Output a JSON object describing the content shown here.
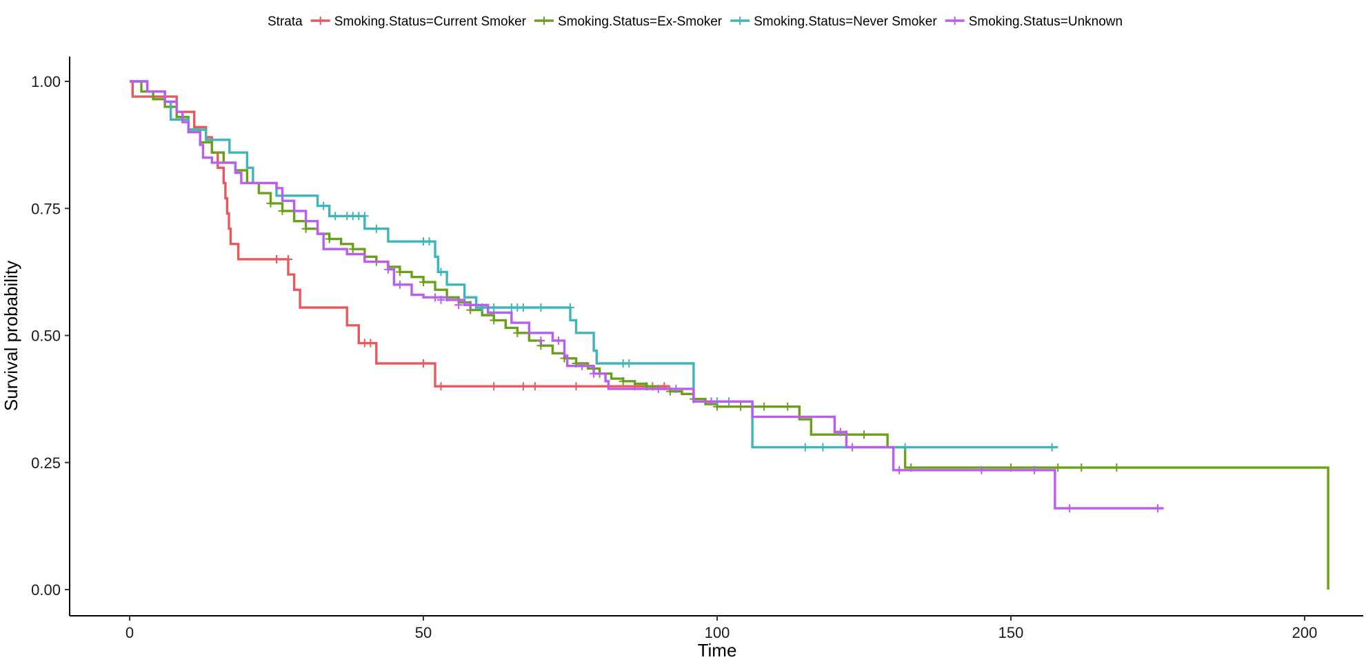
{
  "chart_data": {
    "type": "line",
    "subtype": "kaplan-meier-step",
    "title": "",
    "xlabel": "Time",
    "ylabel": "Survival probability",
    "xlim": [
      -10,
      210
    ],
    "ylim": [
      -0.045,
      1.05
    ],
    "xticks": [
      0,
      50,
      100,
      150,
      200
    ],
    "xtick_labels": [
      "0",
      "50",
      "100",
      "150",
      "200"
    ],
    "yticks": [
      0,
      0.25,
      0.5,
      0.75,
      1.0
    ],
    "ytick_labels": [
      "0.00",
      "0.25",
      "0.50",
      "0.75",
      "1.00"
    ],
    "grid": false,
    "legend": {
      "title": "Strata",
      "placement": "top"
    },
    "series": [
      {
        "name": "Smoking.Status=Current Smoker",
        "color": "#E8585C",
        "steps": [
          [
            0,
            1.0
          ],
          [
            0.5,
            0.97
          ],
          [
            4,
            0.97
          ],
          [
            8,
            0.94
          ],
          [
            11,
            0.91
          ],
          [
            13,
            0.89
          ],
          [
            14,
            0.86
          ],
          [
            15,
            0.83
          ],
          [
            16,
            0.8
          ],
          [
            16.3,
            0.77
          ],
          [
            16.6,
            0.74
          ],
          [
            16.9,
            0.71
          ],
          [
            17.2,
            0.68
          ],
          [
            18.5,
            0.65
          ],
          [
            27,
            0.62
          ],
          [
            28,
            0.59
          ],
          [
            29,
            0.555
          ],
          [
            37,
            0.52
          ],
          [
            39,
            0.485
          ],
          [
            42,
            0.445
          ],
          [
            52,
            0.4
          ],
          [
            92,
            0.4
          ]
        ],
        "censor": [
          [
            25,
            0.65
          ],
          [
            27,
            0.65
          ],
          [
            40,
            0.485
          ],
          [
            41,
            0.485
          ],
          [
            50,
            0.445
          ],
          [
            53,
            0.4
          ],
          [
            62,
            0.4
          ],
          [
            67,
            0.4
          ],
          [
            69,
            0.4
          ],
          [
            76,
            0.4
          ],
          [
            86,
            0.4
          ],
          [
            89,
            0.4
          ],
          [
            91,
            0.4
          ]
        ]
      },
      {
        "name": "Smoking.Status=Ex-Smoker",
        "color": "#6A9F19",
        "steps": [
          [
            0,
            1.0
          ],
          [
            2,
            0.98
          ],
          [
            4,
            0.965
          ],
          [
            6,
            0.95
          ],
          [
            8,
            0.93
          ],
          [
            10,
            0.905
          ],
          [
            12,
            0.88
          ],
          [
            14,
            0.86
          ],
          [
            16,
            0.84
          ],
          [
            18,
            0.825
          ],
          [
            20,
            0.8
          ],
          [
            22,
            0.78
          ],
          [
            24,
            0.76
          ],
          [
            26,
            0.745
          ],
          [
            28,
            0.725
          ],
          [
            30,
            0.71
          ],
          [
            32,
            0.7
          ],
          [
            34,
            0.69
          ],
          [
            36,
            0.68
          ],
          [
            38,
            0.67
          ],
          [
            40,
            0.655
          ],
          [
            42,
            0.645
          ],
          [
            44,
            0.635
          ],
          [
            46,
            0.625
          ],
          [
            48,
            0.615
          ],
          [
            50,
            0.605
          ],
          [
            52,
            0.59
          ],
          [
            54,
            0.575
          ],
          [
            56,
            0.565
          ],
          [
            58,
            0.55
          ],
          [
            60,
            0.54
          ],
          [
            62,
            0.53
          ],
          [
            64,
            0.515
          ],
          [
            66,
            0.505
          ],
          [
            68,
            0.49
          ],
          [
            70,
            0.48
          ],
          [
            72,
            0.465
          ],
          [
            74,
            0.455
          ],
          [
            76,
            0.445
          ],
          [
            78,
            0.435
          ],
          [
            80,
            0.425
          ],
          [
            82,
            0.415
          ],
          [
            84,
            0.41
          ],
          [
            86,
            0.405
          ],
          [
            88,
            0.4
          ],
          [
            90,
            0.395
          ],
          [
            92,
            0.39
          ],
          [
            94,
            0.385
          ],
          [
            96,
            0.375
          ],
          [
            98,
            0.365
          ],
          [
            100,
            0.36
          ],
          [
            114,
            0.335
          ],
          [
            116,
            0.305
          ],
          [
            129,
            0.28
          ],
          [
            132,
            0.24
          ],
          [
            204,
            0.24
          ],
          [
            204,
            0.0
          ]
        ],
        "censor": [
          [
            24,
            0.76
          ],
          [
            26,
            0.745
          ],
          [
            30,
            0.71
          ],
          [
            34,
            0.69
          ],
          [
            38,
            0.67
          ],
          [
            42,
            0.645
          ],
          [
            46,
            0.625
          ],
          [
            50,
            0.605
          ],
          [
            54,
            0.575
          ],
          [
            58,
            0.55
          ],
          [
            62,
            0.53
          ],
          [
            66,
            0.505
          ],
          [
            70,
            0.48
          ],
          [
            74,
            0.455
          ],
          [
            76,
            0.445
          ],
          [
            80,
            0.425
          ],
          [
            84,
            0.41
          ],
          [
            88,
            0.4
          ],
          [
            92,
            0.39
          ],
          [
            96,
            0.375
          ],
          [
            100,
            0.36
          ],
          [
            104,
            0.36
          ],
          [
            106,
            0.36
          ],
          [
            108,
            0.36
          ],
          [
            112,
            0.36
          ],
          [
            122,
            0.305
          ],
          [
            125,
            0.305
          ],
          [
            133,
            0.24
          ],
          [
            150,
            0.24
          ],
          [
            158,
            0.24
          ],
          [
            162,
            0.24
          ],
          [
            168,
            0.24
          ]
        ]
      },
      {
        "name": "Smoking.Status=Never Smoker",
        "color": "#3DB5BA",
        "steps": [
          [
            0,
            1.0
          ],
          [
            3,
            0.98
          ],
          [
            6,
            0.96
          ],
          [
            7,
            0.925
          ],
          [
            10,
            0.905
          ],
          [
            13,
            0.885
          ],
          [
            17,
            0.86
          ],
          [
            20,
            0.83
          ],
          [
            21,
            0.8
          ],
          [
            25,
            0.775
          ],
          [
            32,
            0.755
          ],
          [
            34,
            0.735
          ],
          [
            40,
            0.71
          ],
          [
            44,
            0.685
          ],
          [
            52,
            0.655
          ],
          [
            52.5,
            0.625
          ],
          [
            54,
            0.6
          ],
          [
            57,
            0.575
          ],
          [
            59,
            0.555
          ],
          [
            75,
            0.53
          ],
          [
            76,
            0.505
          ],
          [
            79,
            0.47
          ],
          [
            79.5,
            0.445
          ],
          [
            96,
            0.37
          ],
          [
            106,
            0.28
          ],
          [
            158,
            0.28
          ]
        ],
        "censor": [
          [
            33,
            0.755
          ],
          [
            35,
            0.735
          ],
          [
            37,
            0.735
          ],
          [
            38,
            0.735
          ],
          [
            39,
            0.735
          ],
          [
            40,
            0.735
          ],
          [
            42,
            0.71
          ],
          [
            50,
            0.685
          ],
          [
            51,
            0.685
          ],
          [
            53,
            0.625
          ],
          [
            60,
            0.555
          ],
          [
            62,
            0.555
          ],
          [
            65,
            0.555
          ],
          [
            66,
            0.555
          ],
          [
            67,
            0.555
          ],
          [
            70,
            0.555
          ],
          [
            75,
            0.555
          ],
          [
            84,
            0.445
          ],
          [
            85,
            0.445
          ],
          [
            100,
            0.37
          ],
          [
            102,
            0.37
          ],
          [
            115,
            0.28
          ],
          [
            118,
            0.28
          ],
          [
            132,
            0.28
          ],
          [
            157,
            0.28
          ]
        ]
      },
      {
        "name": "Smoking.Status=Unknown",
        "color": "#BB5CF0",
        "steps": [
          [
            0,
            1.0
          ],
          [
            3,
            0.98
          ],
          [
            6,
            0.96
          ],
          [
            8,
            0.94
          ],
          [
            9,
            0.92
          ],
          [
            10,
            0.9
          ],
          [
            12,
            0.875
          ],
          [
            12.5,
            0.85
          ],
          [
            14,
            0.84
          ],
          [
            18,
            0.82
          ],
          [
            19,
            0.8
          ],
          [
            25,
            0.79
          ],
          [
            26,
            0.765
          ],
          [
            28,
            0.745
          ],
          [
            30,
            0.725
          ],
          [
            32,
            0.7
          ],
          [
            33,
            0.67
          ],
          [
            37,
            0.66
          ],
          [
            40,
            0.645
          ],
          [
            44,
            0.63
          ],
          [
            45,
            0.6
          ],
          [
            48,
            0.58
          ],
          [
            50,
            0.575
          ],
          [
            54,
            0.57
          ],
          [
            57,
            0.56
          ],
          [
            61,
            0.545
          ],
          [
            65,
            0.525
          ],
          [
            68,
            0.505
          ],
          [
            72,
            0.49
          ],
          [
            74,
            0.46
          ],
          [
            74.5,
            0.44
          ],
          [
            79,
            0.425
          ],
          [
            81,
            0.41
          ],
          [
            81.5,
            0.395
          ],
          [
            96,
            0.37
          ],
          [
            106,
            0.34
          ],
          [
            120,
            0.31
          ],
          [
            122,
            0.28
          ],
          [
            130,
            0.235
          ],
          [
            157,
            0.235
          ],
          [
            157.5,
            0.16
          ],
          [
            176,
            0.16
          ]
        ],
        "censor": [
          [
            44,
            0.63
          ],
          [
            46,
            0.6
          ],
          [
            52,
            0.575
          ],
          [
            53,
            0.57
          ],
          [
            56,
            0.56
          ],
          [
            58,
            0.56
          ],
          [
            70,
            0.49
          ],
          [
            73,
            0.49
          ],
          [
            77,
            0.44
          ],
          [
            79,
            0.425
          ],
          [
            90,
            0.395
          ],
          [
            93,
            0.395
          ],
          [
            99,
            0.37
          ],
          [
            121,
            0.31
          ],
          [
            123,
            0.28
          ],
          [
            131,
            0.235
          ],
          [
            145,
            0.235
          ],
          [
            154,
            0.235
          ],
          [
            160,
            0.16
          ],
          [
            175,
            0.16
          ]
        ]
      }
    ]
  }
}
